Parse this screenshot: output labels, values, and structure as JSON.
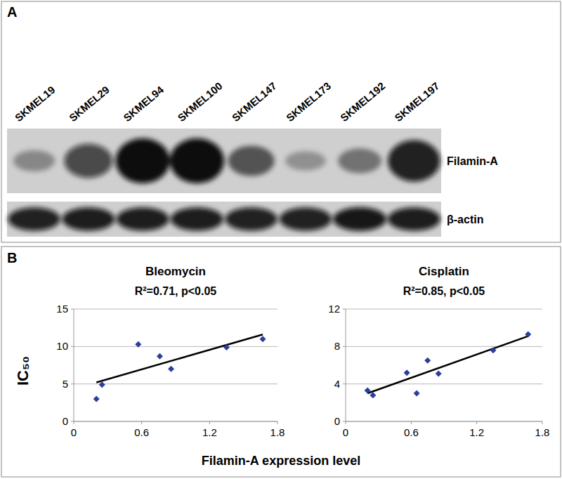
{
  "panel_labels": [
    "A",
    "B"
  ],
  "blot": {
    "lanes": [
      "SKMEL19",
      "SKMEL29",
      "SKMEL94",
      "SKMEL100",
      "SKMEL147",
      "SKMEL173",
      "SKMEL192",
      "SKMEL197"
    ],
    "rows": [
      {
        "label": "Filamin-A",
        "intensity": [
          0.35,
          0.7,
          1.0,
          1.0,
          0.6,
          0.3,
          0.45,
          0.9
        ]
      },
      {
        "label": "β-actin",
        "intensity": [
          0.9,
          0.92,
          0.92,
          0.92,
          0.9,
          0.9,
          0.95,
          0.92
        ]
      }
    ]
  },
  "shared_axes": {
    "x_label": "Filamin-A expression level",
    "y_label": "IC₅₀"
  },
  "chart_data": [
    {
      "type": "scatter",
      "title": "Bleomycin",
      "annotation": "R²=0.71, p<0.05",
      "x": [
        0.2,
        0.25,
        0.57,
        0.76,
        0.86,
        1.35,
        1.67
      ],
      "values": [
        3.0,
        4.9,
        10.3,
        8.7,
        7.0,
        9.9,
        11.0
      ],
      "color": "#2a3f9a",
      "marker": "diamond",
      "fit": {
        "x": [
          0.2,
          1.67
        ],
        "y": [
          5.2,
          11.6
        ]
      },
      "xlim": [
        0,
        1.8
      ],
      "xticks": [
        0,
        0.6,
        1.2,
        1.8
      ],
      "ylim": [
        0,
        15
      ],
      "yticks": [
        0,
        5,
        10,
        15
      ],
      "grid": true
    },
    {
      "type": "scatter",
      "title": "Cisplatin",
      "annotation": "R²=0.85, p<0.05",
      "x": [
        0.2,
        0.25,
        0.56,
        0.65,
        0.75,
        0.85,
        1.35,
        1.67
      ],
      "values": [
        3.3,
        2.8,
        5.2,
        3.0,
        6.5,
        5.1,
        7.6,
        9.3
      ],
      "color": "#2a3f9a",
      "marker": "diamond",
      "fit": {
        "x": [
          0.2,
          1.67
        ],
        "y": [
          3.0,
          9.1
        ]
      },
      "xlim": [
        0,
        1.8
      ],
      "xticks": [
        0,
        0.6,
        1.2,
        1.8
      ],
      "ylim": [
        0,
        12
      ],
      "yticks": [
        0,
        4,
        8,
        12
      ],
      "grid": true
    }
  ]
}
